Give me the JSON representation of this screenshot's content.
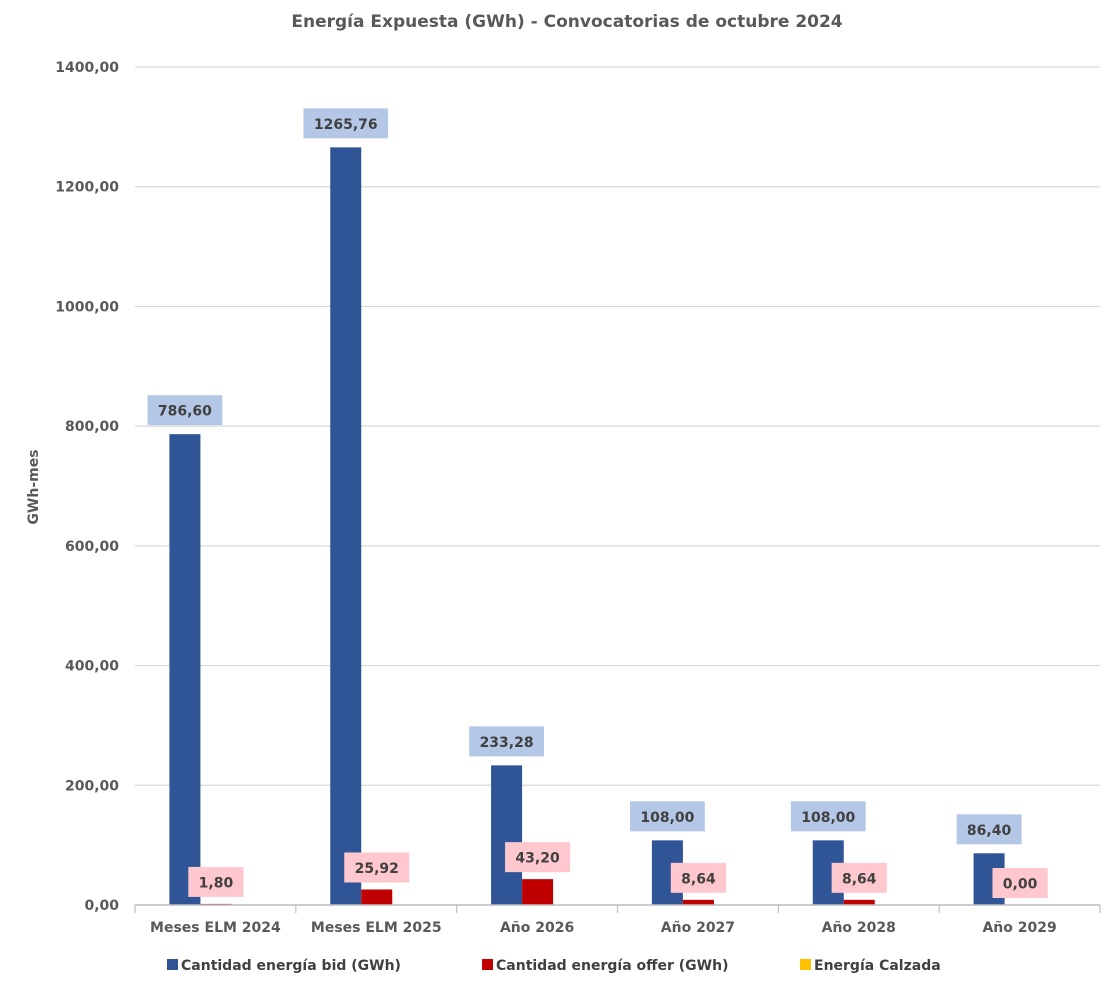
{
  "chart_data": {
    "type": "bar",
    "title": "Energía Expuesta (GWh) - Convocatorias de octubre 2024",
    "xlabel": "",
    "ylabel": "GWh-mes",
    "ylim": [
      0,
      1400
    ],
    "yticks": [
      "0,00",
      "200,00",
      "400,00",
      "600,00",
      "800,00",
      "1000,00",
      "1200,00",
      "1400,00"
    ],
    "categories": [
      "Meses ELM 2024",
      "Meses ELM 2025",
      "Año 2026",
      "Año 2027",
      "Año 2028",
      "Año 2029"
    ],
    "series": [
      {
        "name": "Cantidad energía bid (GWh)",
        "color": "#2F5597",
        "label_bg": "#B4C7E7",
        "values": [
          786.6,
          1265.76,
          233.28,
          108.0,
          108.0,
          86.4
        ],
        "labels": [
          "786,60",
          "1265,76",
          "233,28",
          "108,00",
          "108,00",
          "86,40"
        ]
      },
      {
        "name": "Cantidad energía offer (GWh)",
        "color": "#C00000",
        "label_bg": "#FFC7CE",
        "values": [
          1.8,
          25.92,
          43.2,
          8.64,
          8.64,
          0.0
        ],
        "labels": [
          "1,80",
          "25,92",
          "43,20",
          "8,64",
          "8,64",
          "0,00"
        ]
      },
      {
        "name": "Energía Calzada",
        "color": "#FFC000",
        "values": [
          0,
          0,
          0,
          0,
          0,
          0
        ]
      }
    ],
    "grid": true,
    "legend_position": "bottom"
  }
}
